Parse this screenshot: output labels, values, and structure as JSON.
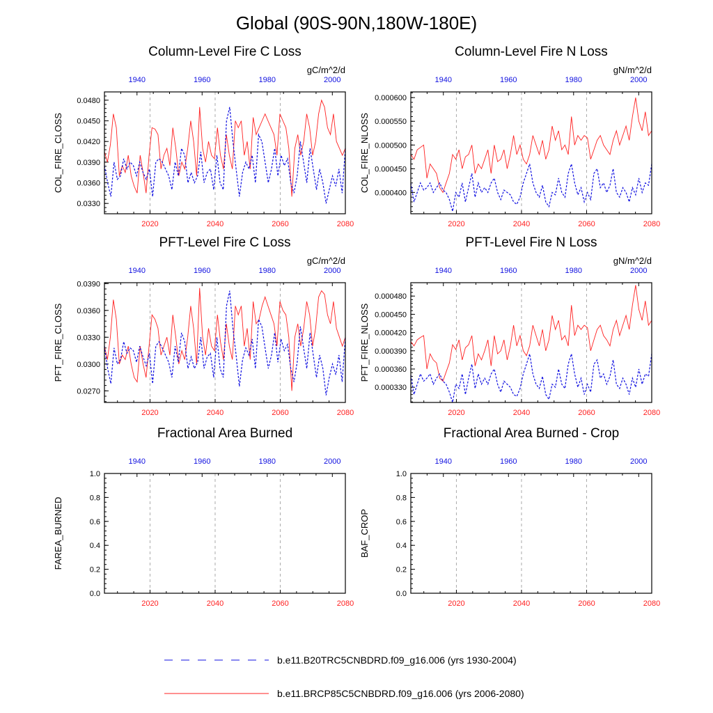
{
  "title": "Global (90S-90N,180W-180E)",
  "colors": {
    "future": "#ff2020",
    "hist": "#1010e0",
    "grid": "#aaaaaa",
    "axis": "#000000"
  },
  "x_bottom": {
    "range": [
      2006,
      2080
    ],
    "ticks": [
      "2020",
      "2040",
      "2060",
      "2080"
    ]
  },
  "x_top": {
    "range": [
      1930,
      2004
    ],
    "ticks": [
      "1940",
      "1960",
      "1980",
      "2000"
    ]
  },
  "legend": {
    "hist_label": "b.e11.B20TRC5CNBDRD.f09_g16.006 (yrs 1930-2004)",
    "future_label": "b.e11.BRCP85C5CNBDRD.f09_g16.006 (yrs 2006-2080)"
  },
  "chart_data": [
    {
      "type": "line",
      "title": "Column-Level Fire C Loss",
      "ylabel": "COL_FIRE_CLOSS",
      "units": "gC/m^2/d",
      "ylim": [
        0.0315,
        0.0492
      ],
      "yticks": [
        "0.0330",
        "0.0360",
        "0.0390",
        "0.0420",
        "0.0450",
        "0.0480"
      ],
      "series": [
        {
          "name": "b.e11.BRCP85C5CNBDRD.f09_g16.006 (yrs 2006-2080)",
          "x_range": [
            2006,
            2080
          ],
          "values": [
            0.0405,
            0.039,
            0.0415,
            0.046,
            0.044,
            0.037,
            0.0385,
            0.0375,
            0.04,
            0.037,
            0.0355,
            0.0345,
            0.04,
            0.0375,
            0.0345,
            0.04,
            0.044,
            0.0438,
            0.043,
            0.038,
            0.04,
            0.041,
            0.0385,
            0.044,
            0.041,
            0.037,
            0.039,
            0.038,
            0.041,
            0.045,
            0.042,
            0.037,
            0.047,
            0.041,
            0.039,
            0.042,
            0.04,
            0.0395,
            0.044,
            0.04,
            0.038,
            0.043,
            0.04,
            0.038,
            0.045,
            0.044,
            0.045,
            0.04,
            0.042,
            0.038,
            0.0455,
            0.043,
            0.044,
            0.045,
            0.046,
            0.045,
            0.044,
            0.043,
            0.04,
            0.046,
            0.045,
            0.044,
            0.041,
            0.034,
            0.041,
            0.043,
            0.04,
            0.042,
            0.046,
            0.044,
            0.04,
            0.042,
            0.046,
            0.048,
            0.047,
            0.044,
            0.043,
            0.046,
            0.042,
            0.041,
            0.04,
            0.041
          ]
        },
        {
          "name": "b.e11.B20TRC5CNBDRD.f09_g16.006 (yrs 1930-2004)",
          "x_range": [
            1930,
            2004
          ],
          "values": [
            0.0385,
            0.036,
            0.034,
            0.039,
            0.0365,
            0.037,
            0.0395,
            0.038,
            0.039,
            0.0385,
            0.037,
            0.039,
            0.0375,
            0.0365,
            0.038,
            0.034,
            0.039,
            0.0395,
            0.039,
            0.038,
            0.037,
            0.035,
            0.039,
            0.037,
            0.041,
            0.04,
            0.036,
            0.0375,
            0.036,
            0.037,
            0.0405,
            0.036,
            0.0375,
            0.038,
            0.035,
            0.04,
            0.036,
            0.035,
            0.045,
            0.047,
            0.042,
            0.038,
            0.034,
            0.0375,
            0.039,
            0.038,
            0.04,
            0.036,
            0.043,
            0.042,
            0.039,
            0.036,
            0.038,
            0.041,
            0.037,
            0.04,
            0.0385,
            0.0395,
            0.036,
            0.0345,
            0.037,
            0.042,
            0.039,
            0.036,
            0.041,
            0.038,
            0.035,
            0.038,
            0.036,
            0.033,
            0.035,
            0.037,
            0.0355,
            0.038,
            0.0345,
            0.041
          ]
        }
      ]
    },
    {
      "type": "line",
      "title": "Column-Level Fire N Loss",
      "ylabel": "COL_FIRE_NLOSS",
      "units": "gN/m^2/d",
      "ylim": [
        0.000355,
        0.000612
      ],
      "yticks": [
        "0.000400",
        "0.000450",
        "0.000500",
        "0.000550",
        "0.000600"
      ],
      "series": [
        {
          "name": "b.e11.BRCP85C5CNBDRD.f09_g16.006 (yrs 2006-2080)",
          "x_range": [
            2006,
            2080
          ],
          "values": [
            0.00048,
            0.00047,
            0.00049,
            0.000495,
            0.0005,
            0.00043,
            0.00046,
            0.00045,
            0.00044,
            0.00041,
            0.0004,
            0.00042,
            0.00044,
            0.00048,
            0.00047,
            0.00049,
            0.00045,
            0.000475,
            0.00048,
            0.0005,
            0.00044,
            0.00046,
            0.00045,
            0.00047,
            0.00049,
            0.00044,
            0.0005,
            0.000465,
            0.00047,
            0.00049,
            0.00045,
            0.00048,
            0.00052,
            0.00048,
            0.0005,
            0.00047,
            0.00046,
            0.00048,
            0.00052,
            0.0005,
            0.00048,
            0.00051,
            0.00047,
            0.00049,
            0.00054,
            0.00051,
            0.00053,
            0.00049,
            0.0005,
            0.00048,
            0.00056,
            0.0005,
            0.00052,
            0.00051,
            0.00052,
            0.000515,
            0.00047,
            0.00049,
            0.00051,
            0.00052,
            0.0005,
            0.00049,
            0.00048,
            0.00051,
            0.00053,
            0.0005,
            0.00052,
            0.00054,
            0.00051,
            0.00056,
            0.0006,
            0.00055,
            0.00053,
            0.00057,
            0.00052,
            0.00053
          ]
        },
        {
          "name": "b.e11.B20TRC5CNBDRD.f09_g16.006 (yrs 1930-2004)",
          "x_range": [
            1930,
            2004
          ],
          "values": [
            0.00042,
            0.00038,
            0.0004,
            0.00042,
            0.000405,
            0.00041,
            0.00042,
            0.0004,
            0.00041,
            0.00042,
            0.000405,
            0.0004,
            0.000385,
            0.00036,
            0.0004,
            0.00039,
            0.00042,
            0.00038,
            0.00041,
            0.00044,
            0.00039,
            0.00042,
            0.0004,
            0.00041,
            0.0004,
            0.00042,
            0.00043,
            0.0004,
            0.000385,
            0.000405,
            0.0004,
            0.000395,
            0.00038,
            0.000375,
            0.00039,
            0.00042,
            0.00044,
            0.00046,
            0.00042,
            0.0004,
            0.00039,
            0.000415,
            0.00038,
            0.00037,
            0.0004,
            0.000395,
            0.00043,
            0.0004,
            0.00039,
            0.00044,
            0.00046,
            0.00042,
            0.000395,
            0.00041,
            0.00038,
            0.0004,
            0.000385,
            0.00044,
            0.00045,
            0.00041,
            0.00042,
            0.0004,
            0.000415,
            0.00045,
            0.0004,
            0.00039,
            0.00041,
            0.0004,
            0.00038,
            0.00041,
            0.000395,
            0.00043,
            0.0004,
            0.00042,
            0.000415,
            0.00046
          ]
        }
      ]
    },
    {
      "type": "line",
      "title": "PFT-Level Fire C Loss",
      "ylabel": "PFT_FIRE_CLOSS",
      "units": "gC/m^2/d",
      "ylim": [
        0.0257,
        0.0391
      ],
      "yticks": [
        "0.0270",
        "0.0300",
        "0.0330",
        "0.0360",
        "0.0390"
      ],
      "series": [
        {
          "name": "b.e11.BRCP85C5CNBDRD.f09_g16.006 (yrs 2006-2080)",
          "x_range": [
            2006,
            2080
          ],
          "values": [
            0.032,
            0.0305,
            0.033,
            0.0372,
            0.035,
            0.03,
            0.031,
            0.0305,
            0.032,
            0.03,
            0.0285,
            0.028,
            0.032,
            0.03,
            0.0285,
            0.032,
            0.0355,
            0.035,
            0.034,
            0.031,
            0.032,
            0.033,
            0.031,
            0.0355,
            0.033,
            0.03,
            0.0315,
            0.0305,
            0.033,
            0.0365,
            0.034,
            0.03,
            0.0385,
            0.033,
            0.031,
            0.034,
            0.032,
            0.0315,
            0.0355,
            0.0325,
            0.0305,
            0.0345,
            0.032,
            0.0305,
            0.0365,
            0.0355,
            0.0365,
            0.032,
            0.034,
            0.0305,
            0.037,
            0.0345,
            0.035,
            0.0365,
            0.0375,
            0.0365,
            0.0355,
            0.0345,
            0.032,
            0.037,
            0.036,
            0.0355,
            0.033,
            0.027,
            0.033,
            0.0345,
            0.032,
            0.034,
            0.037,
            0.0355,
            0.032,
            0.034,
            0.0375,
            0.0382,
            0.0378,
            0.0355,
            0.0345,
            0.037,
            0.034,
            0.033,
            0.032,
            0.033
          ]
        },
        {
          "name": "b.e11.B20TRC5CNBDRD.f09_g16.006 (yrs 1930-2004)",
          "x_range": [
            1930,
            2004
          ],
          "values": [
            0.032,
            0.0295,
            0.0278,
            0.0318,
            0.03,
            0.0305,
            0.0325,
            0.0312,
            0.0318,
            0.0315,
            0.0302,
            0.032,
            0.0308,
            0.0298,
            0.0312,
            0.0278,
            0.032,
            0.0325,
            0.0318,
            0.031,
            0.0302,
            0.0285,
            0.032,
            0.0302,
            0.0335,
            0.0325,
            0.0295,
            0.0308,
            0.0295,
            0.0302,
            0.033,
            0.0295,
            0.0308,
            0.0312,
            0.0285,
            0.033,
            0.0295,
            0.0285,
            0.0365,
            0.0382,
            0.034,
            0.031,
            0.0275,
            0.0305,
            0.0318,
            0.031,
            0.0328,
            0.0295,
            0.035,
            0.0342,
            0.0318,
            0.0295,
            0.031,
            0.0335,
            0.0302,
            0.0328,
            0.0315,
            0.0322,
            0.0295,
            0.028,
            0.0302,
            0.0342,
            0.0318,
            0.0295,
            0.0335,
            0.031,
            0.0285,
            0.031,
            0.0295,
            0.0265,
            0.0285,
            0.03,
            0.0288,
            0.031,
            0.028,
            0.033
          ]
        }
      ]
    },
    {
      "type": "line",
      "title": "PFT-Level Fire N Loss",
      "ylabel": "PFT_FIRE_NLOSS",
      "units": "gN/m^2/d",
      "ylim": [
        0.000305,
        0.000502
      ],
      "yticks": [
        "0.000330",
        "0.000360",
        "0.000390",
        "0.000420",
        "0.000450",
        "0.000480"
      ],
      "series": [
        {
          "name": "b.e11.BRCP85C5CNBDRD.f09_g16.006 (yrs 2006-2080)",
          "x_range": [
            2006,
            2080
          ],
          "values": [
            0.000405,
            0.000398,
            0.000408,
            0.000412,
            0.000415,
            0.00036,
            0.000385,
            0.000375,
            0.00037,
            0.000345,
            0.00034,
            0.000355,
            0.00037,
            0.0004,
            0.000392,
            0.000408,
            0.000375,
            0.000395,
            0.0004,
            0.000415,
            0.000365,
            0.000385,
            0.000375,
            0.00039,
            0.000408,
            0.000365,
            0.000415,
            0.000385,
            0.00039,
            0.000408,
            0.000375,
            0.000398,
            0.000432,
            0.000398,
            0.000415,
            0.00039,
            0.000382,
            0.000398,
            0.000432,
            0.000415,
            0.000398,
            0.000425,
            0.00039,
            0.000408,
            0.000448,
            0.000425,
            0.00044,
            0.000408,
            0.000415,
            0.000398,
            0.000465,
            0.000415,
            0.000432,
            0.000425,
            0.000432,
            0.000428,
            0.00039,
            0.000408,
            0.000425,
            0.000432,
            0.000415,
            0.000408,
            0.000398,
            0.000425,
            0.00044,
            0.000415,
            0.000432,
            0.000448,
            0.000425,
            0.000465,
            0.000498,
            0.000458,
            0.00044,
            0.000472,
            0.000432,
            0.00044
          ]
        },
        {
          "name": "b.e11.B20TRC5CNBDRD.f09_g16.006 (yrs 1930-2004)",
          "x_range": [
            1930,
            2004
          ],
          "values": [
            0.00035,
            0.000318,
            0.000335,
            0.000352,
            0.00034,
            0.000345,
            0.000352,
            0.000335,
            0.000345,
            0.000352,
            0.00034,
            0.000335,
            0.000322,
            0.000305,
            0.000335,
            0.000328,
            0.000352,
            0.000318,
            0.000345,
            0.000368,
            0.000328,
            0.000352,
            0.000335,
            0.000345,
            0.000335,
            0.000352,
            0.00036,
            0.000335,
            0.000322,
            0.00034,
            0.000335,
            0.00033,
            0.000318,
            0.000315,
            0.000328,
            0.000352,
            0.000368,
            0.000385,
            0.000352,
            0.000335,
            0.000328,
            0.000348,
            0.000318,
            0.00031,
            0.000335,
            0.00033,
            0.00036,
            0.000335,
            0.000328,
            0.000368,
            0.000385,
            0.000352,
            0.00033,
            0.000345,
            0.000318,
            0.000335,
            0.000322,
            0.000368,
            0.000375,
            0.000345,
            0.000352,
            0.000335,
            0.000348,
            0.000375,
            0.000335,
            0.000328,
            0.000345,
            0.000335,
            0.000318,
            0.000345,
            0.00033,
            0.00036,
            0.000335,
            0.000352,
            0.000348,
            0.000385
          ]
        }
      ]
    },
    {
      "type": "line",
      "title": "Fractional Area Burned",
      "ylabel": "FAREA_BURNED",
      "units": "",
      "ylim": [
        0.0,
        1.0
      ],
      "yticks": [
        "0.0",
        "0.2",
        "0.4",
        "0.6",
        "0.8",
        "1.0"
      ],
      "series": []
    },
    {
      "type": "line",
      "title": "Fractional Area Burned - Crop",
      "ylabel": "BAF_CROP",
      "units": "",
      "ylim": [
        0.0,
        1.0
      ],
      "yticks": [
        "0.0",
        "0.2",
        "0.4",
        "0.6",
        "0.8",
        "1.0"
      ],
      "series": []
    }
  ]
}
